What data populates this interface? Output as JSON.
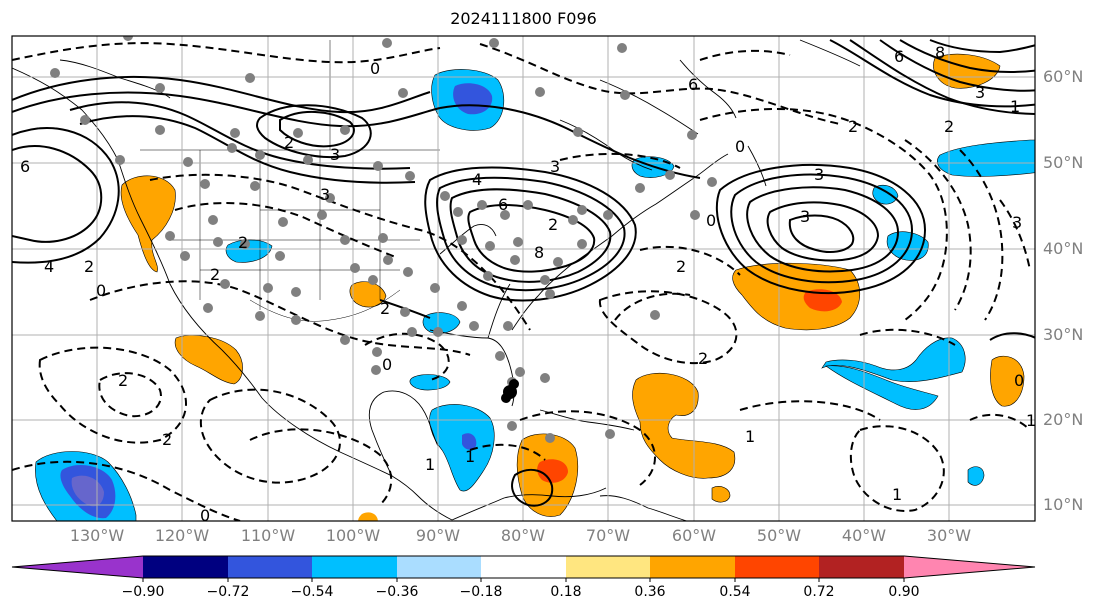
{
  "title": "2024111800 F096",
  "map": {
    "latitude_labels": [
      "60°N",
      "50°N",
      "40°N",
      "30°N",
      "20°N",
      "10°N"
    ],
    "longitude_labels": [
      "130°W",
      "120°W",
      "110°W",
      "100°W",
      "90°W",
      "80°W",
      "70°W",
      "60°W",
      "50°W",
      "40°W",
      "30°W"
    ],
    "contour_labels": [
      "0",
      "6",
      "2",
      "3",
      "3",
      "2",
      "6",
      "4",
      "3",
      "6",
      "8",
      "2",
      "4",
      "2",
      "0",
      "2",
      "2",
      "2",
      "0",
      "0",
      "2",
      "1",
      "1",
      "3",
      "2",
      "0",
      "3",
      "1",
      "3",
      "6",
      "8",
      "3",
      "1",
      "1",
      "0",
      "2",
      "2",
      "0",
      "2",
      "1"
    ]
  },
  "colorbar": {
    "ticks": [
      "−0.90",
      "−0.72",
      "−0.54",
      "−0.36",
      "−0.18",
      "0.18",
      "0.36",
      "0.54",
      "0.72",
      "0.90"
    ],
    "colors": [
      "#9933cc",
      "#000080",
      "#3355dd",
      "#00bfff",
      "#aaddff",
      "#ffffff",
      "#ffe680",
      "#ffa500",
      "#ff4500",
      "#b22222",
      "#ff85b0"
    ]
  }
}
